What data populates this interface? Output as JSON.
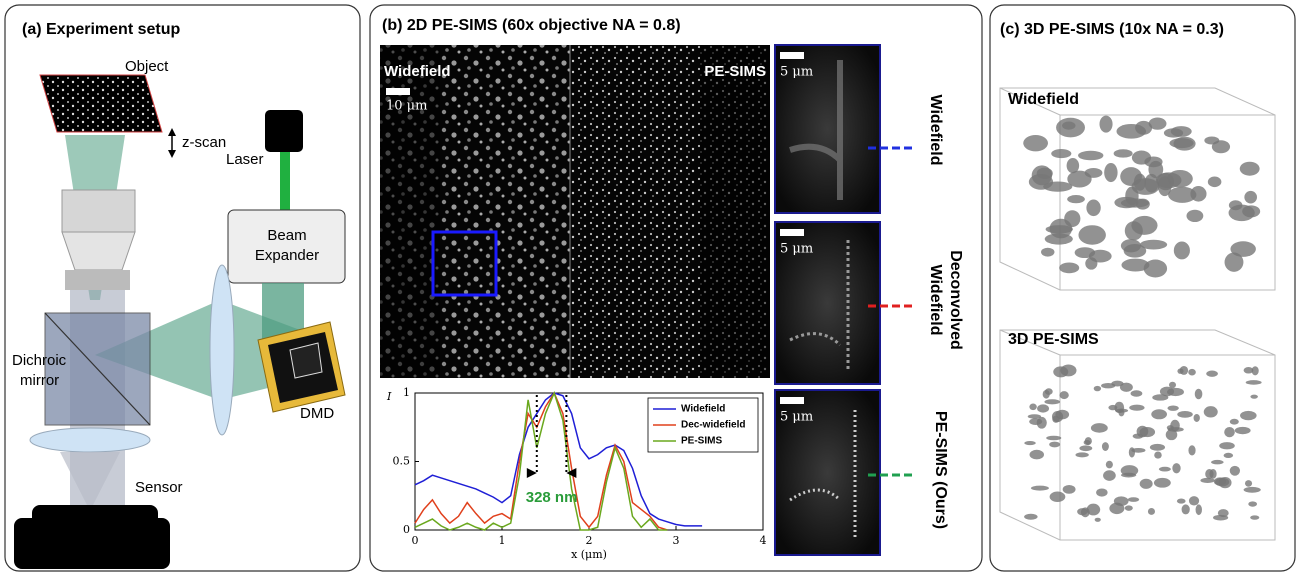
{
  "panel_a": {
    "title": "(a) Experiment setup",
    "object": "Object",
    "z_scan": "z-scan",
    "laser": "Laser",
    "beam_expander": [
      "Beam",
      "Expander"
    ],
    "dichroic_mirror": [
      "Dichroic",
      "mirror"
    ],
    "dmd": "DMD",
    "sensor": "Sensor"
  },
  "panel_b": {
    "title": "(b) 2D PE-SIMS (60x objective NA = 0.8)",
    "image_left": "Widefield",
    "image_right": "PE-SIMS",
    "scale_main": "10 μm",
    "insets": [
      {
        "label": [
          "Widefield"
        ],
        "scale": "5 μm"
      },
      {
        "label": [
          "Deconvolved",
          "Widefield"
        ],
        "scale": "5 μm"
      },
      {
        "label": [
          "PE-SIMS (Ours)"
        ],
        "scale": "5 μm"
      }
    ]
  },
  "panel_c": {
    "title": "(c) 3D PE-SIMS (10x NA = 0.3)",
    "top": "Widefield",
    "bottom": "3D PE-SIMS"
  },
  "chart_data": {
    "type": "line",
    "xlabel": "x (μm)",
    "ylabel": "I",
    "annotation": "328 nm",
    "x": [
      0,
      0.1,
      0.2,
      0.3,
      0.4,
      0.5,
      0.6,
      0.7,
      0.8,
      0.9,
      1,
      1.1,
      1.2,
      1.3,
      1.4,
      1.5,
      1.6,
      1.7,
      1.8,
      1.9,
      2,
      2.1,
      2.2,
      2.3,
      2.4,
      2.5,
      2.6,
      2.7,
      2.8,
      2.9,
      3,
      3.1,
      3.2,
      3.3
    ],
    "series": [
      {
        "name": "Widefield",
        "color": "#1f1fd6",
        "values": [
          0.33,
          0.36,
          0.4,
          0.38,
          0.36,
          0.34,
          0.32,
          0.3,
          0.27,
          0.24,
          0.2,
          0.25,
          0.55,
          0.75,
          0.85,
          0.95,
          1.0,
          0.98,
          0.85,
          0.6,
          0.52,
          0.55,
          0.6,
          0.62,
          0.58,
          0.45,
          0.25,
          0.12,
          0.08,
          0.06,
          0.04,
          0.03,
          0.03,
          0.03
        ]
      },
      {
        "name": "Dec-widefield",
        "color": "#e0401c",
        "values": [
          0.05,
          0.15,
          0.22,
          0.12,
          0.05,
          0.1,
          0.2,
          0.12,
          0.05,
          0.1,
          0.12,
          0.08,
          0.5,
          0.85,
          0.75,
          0.9,
          1.0,
          0.85,
          0.45,
          0.1,
          0.02,
          0.1,
          0.4,
          0.62,
          0.5,
          0.2,
          0.15,
          0.1,
          0.02,
          0.0,
          null,
          null,
          null,
          null
        ]
      },
      {
        "name": "PE-SIMS",
        "color": "#6aa81e",
        "values": [
          0.02,
          0.05,
          0.08,
          0.03,
          0.0,
          0.02,
          0.05,
          0.02,
          0.0,
          0.05,
          0.02,
          0.05,
          0.4,
          0.95,
          0.6,
          0.85,
          1.0,
          0.8,
          0.3,
          0.0,
          0.0,
          0.02,
          0.35,
          0.6,
          0.45,
          0.1,
          0.02,
          0.08,
          0.0,
          0.0,
          null,
          null,
          null,
          null
        ]
      }
    ],
    "xlim": [
      0,
      4
    ],
    "ylim": [
      0,
      1
    ],
    "xticks": [
      0,
      1,
      2,
      3,
      4
    ],
    "yticks": [
      0,
      0.5,
      1
    ],
    "legend": "upper right"
  }
}
